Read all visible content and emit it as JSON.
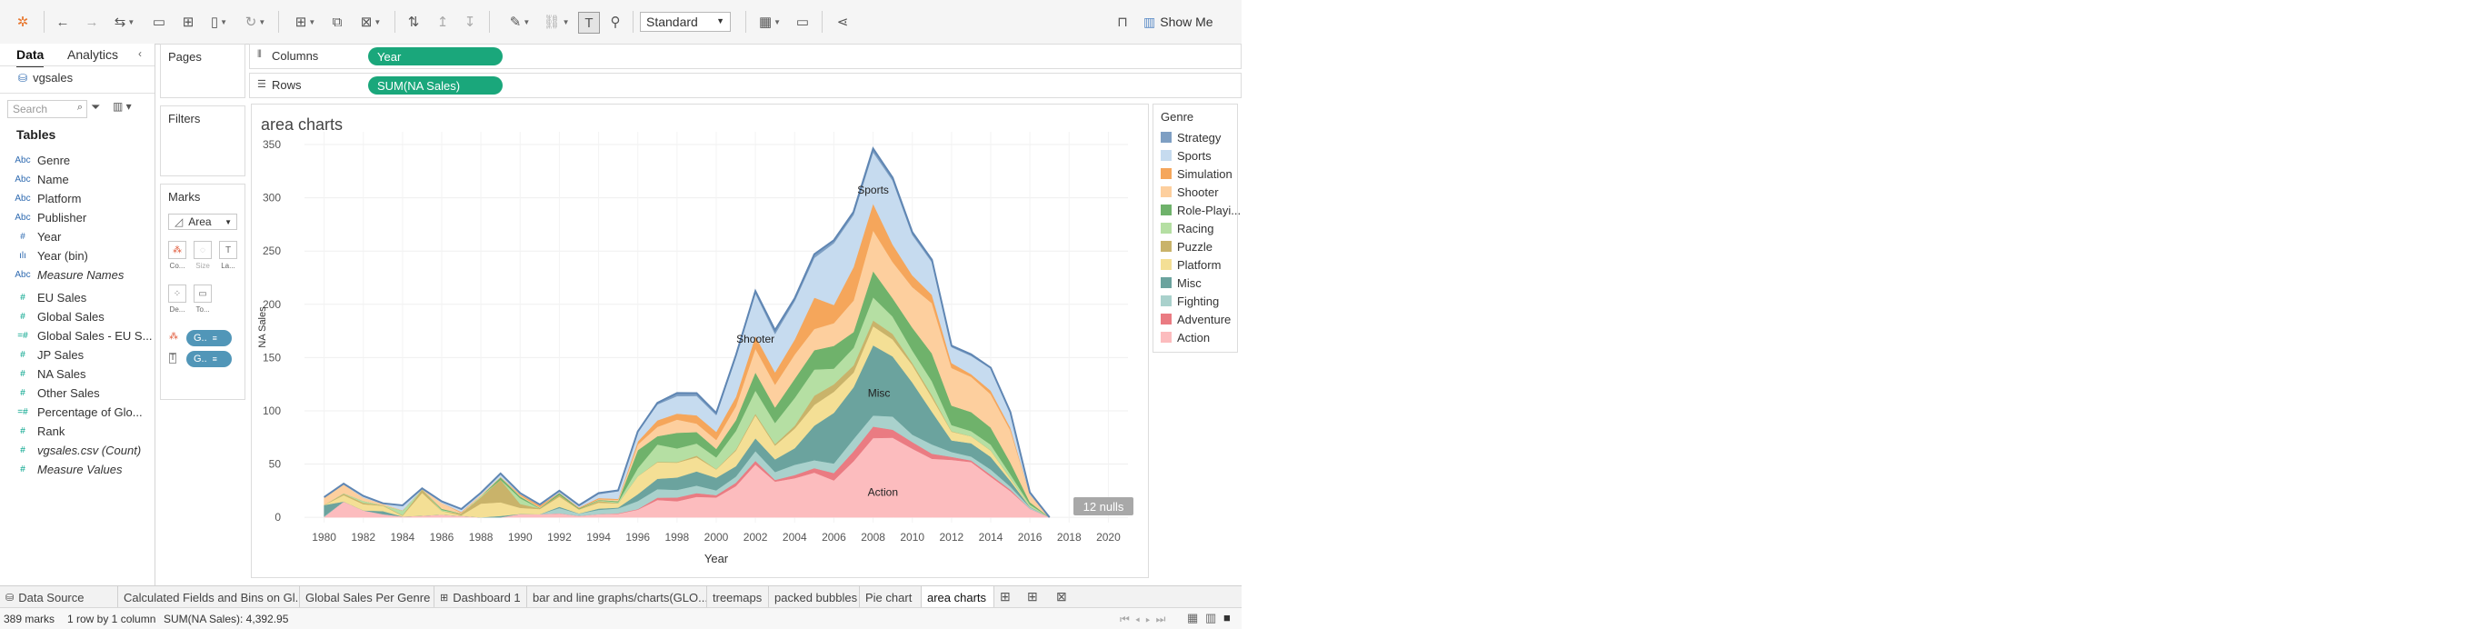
{
  "toolbar": {
    "mark_size_select": "Standard",
    "show_me": "Show Me"
  },
  "left_panel": {
    "tabs": [
      "Data",
      "Analytics"
    ],
    "datasource": "vgsales",
    "search_placeholder": "Search",
    "tables_heading": "Tables",
    "fields": [
      {
        "type": "Abc",
        "name": "Genre",
        "kind": "dim"
      },
      {
        "type": "Abc",
        "name": "Name",
        "kind": "dim"
      },
      {
        "type": "Abc",
        "name": "Platform",
        "kind": "dim"
      },
      {
        "type": "Abc",
        "name": "Publisher",
        "kind": "dim"
      },
      {
        "type": "#",
        "name": "Year",
        "kind": "dim"
      },
      {
        "type": "ılı",
        "name": "Year (bin)",
        "kind": "dim"
      },
      {
        "type": "Abc",
        "name": "Measure Names",
        "kind": "dim",
        "italic": true
      },
      {
        "type": "#",
        "name": "EU Sales",
        "kind": "mea"
      },
      {
        "type": "#",
        "name": "Global Sales",
        "kind": "mea"
      },
      {
        "type": "=#",
        "name": "Global Sales - EU S...",
        "kind": "mea"
      },
      {
        "type": "#",
        "name": "JP Sales",
        "kind": "mea"
      },
      {
        "type": "#",
        "name": "NA Sales",
        "kind": "mea"
      },
      {
        "type": "#",
        "name": "Other Sales",
        "kind": "mea"
      },
      {
        "type": "=#",
        "name": "Percentage of Glo...",
        "kind": "mea"
      },
      {
        "type": "#",
        "name": "Rank",
        "kind": "mea"
      },
      {
        "type": "#",
        "name": "vgsales.csv (Count)",
        "kind": "mea",
        "italic": true
      },
      {
        "type": "#",
        "name": "Measure Values",
        "kind": "mea",
        "italic": true
      }
    ]
  },
  "pages_card": {
    "title": "Pages"
  },
  "filters_card": {
    "title": "Filters"
  },
  "marks_card": {
    "title": "Marks",
    "mark_type": "Area",
    "buttons": [
      "Co...",
      "Size",
      "La...",
      "De...",
      "To..."
    ],
    "pills": [
      "G..",
      "G.."
    ]
  },
  "shelves": {
    "columns_label": "Columns",
    "columns_pill": "Year",
    "rows_label": "Rows",
    "rows_pill": "SUM(NA Sales)"
  },
  "legend": {
    "title": "Genre",
    "items": [
      {
        "name": "Strategy",
        "color": "#7e9fc3"
      },
      {
        "name": "Sports",
        "color": "#c6dbef"
      },
      {
        "name": "Simulation",
        "color": "#f5a65b"
      },
      {
        "name": "Shooter",
        "color": "#fdcf9e"
      },
      {
        "name": "Role-Playi...",
        "color": "#6fb26b"
      },
      {
        "name": "Racing",
        "color": "#b5dfa3"
      },
      {
        "name": "Puzzle",
        "color": "#c9b36a"
      },
      {
        "name": "Platform",
        "color": "#f4df95"
      },
      {
        "name": "Misc",
        "color": "#6ba39e"
      },
      {
        "name": "Fighting",
        "color": "#a9d1cc"
      },
      {
        "name": "Adventure",
        "color": "#ea7b82"
      },
      {
        "name": "Action",
        "color": "#fcbcbe"
      }
    ]
  },
  "chart_data": {
    "type": "area",
    "title": "area charts",
    "xlabel": "Year",
    "ylabel": "NA Sales",
    "x_ticks": [
      1980,
      1982,
      1984,
      1986,
      1988,
      1990,
      1992,
      1994,
      1996,
      1998,
      2000,
      2002,
      2004,
      2006,
      2008,
      2010,
      2012,
      2014,
      2016,
      2018,
      2020
    ],
    "y_ticks": [
      0,
      50,
      100,
      150,
      200,
      250,
      300,
      350
    ],
    "xlim": [
      1979,
      2021
    ],
    "ylim": [
      -5,
      362
    ],
    "years": [
      1980,
      1981,
      1982,
      1983,
      1984,
      1985,
      1986,
      1987,
      1988,
      1989,
      1990,
      1991,
      1992,
      1993,
      1994,
      1995,
      1996,
      1997,
      1998,
      1999,
      2000,
      2001,
      2002,
      2003,
      2004,
      2005,
      2006,
      2007,
      2008,
      2009,
      2010,
      2011,
      2012,
      2013,
      2014,
      2015,
      2016,
      2017
    ],
    "series": [
      {
        "name": "Action",
        "values": [
          0.3,
          14.8,
          6.5,
          2.9,
          0.8,
          1.6,
          2.6,
          1.4,
          0.0,
          0.0,
          3.2,
          2.9,
          3.6,
          1.4,
          3.0,
          3.4,
          7.2,
          16.3,
          15.1,
          19.2,
          18.6,
          29.3,
          49.6,
          33.6,
          36.7,
          42.0,
          34.7,
          52.6,
          74.5,
          74.8,
          64.5,
          55.0,
          54.0,
          51.9,
          38.1,
          24.6,
          8.0,
          0.0
        ]
      },
      {
        "name": "Adventure",
        "values": [
          0,
          0,
          0,
          0.1,
          0,
          0,
          0,
          0,
          0,
          0,
          0,
          0,
          0.2,
          0,
          0,
          0.4,
          0.5,
          2.2,
          3.5,
          3.5,
          2.3,
          3.2,
          3.4,
          1.5,
          3.0,
          4.2,
          6.9,
          9.3,
          10.7,
          7.5,
          6.2,
          4.8,
          2.8,
          1.6,
          1.8,
          1.4,
          0.1,
          0
        ]
      },
      {
        "name": "Fighting",
        "values": [
          0.7,
          0,
          0,
          0,
          0,
          0,
          0,
          0,
          0,
          0,
          0,
          0,
          4.9,
          2.1,
          4.0,
          4.6,
          7.6,
          8.0,
          7.2,
          7.1,
          4.5,
          5.8,
          9.2,
          7.4,
          9.7,
          7.4,
          9.0,
          11.5,
          10.4,
          12.4,
          7.0,
          8.7,
          4.6,
          3.6,
          5.0,
          2.9,
          1.4,
          0
        ]
      },
      {
        "name": "Misc",
        "values": [
          10.6,
          0,
          0,
          2.8,
          0,
          0,
          0,
          0,
          0,
          1.3,
          0,
          0,
          1.2,
          0.1,
          1.2,
          0.8,
          6.4,
          9.7,
          11.6,
          13.3,
          11.8,
          9.7,
          12.0,
          11.9,
          15.5,
          32.5,
          47.5,
          48.7,
          65.9,
          56.4,
          49.0,
          30.6,
          10.8,
          12.5,
          11.9,
          5.3,
          0.4,
          0
        ]
      },
      {
        "name": "Platform",
        "values": [
          0,
          6.1,
          5.8,
          5.1,
          0.7,
          21.4,
          3.3,
          0.6,
          12.9,
          12.8,
          5.7,
          4.9,
          9.5,
          3.8,
          5.6,
          3.9,
          16.8,
          15.5,
          13.9,
          13.3,
          7.7,
          14.6,
          21.7,
          13.0,
          18.4,
          19.5,
          19.8,
          13.7,
          17.9,
          16.0,
          16.3,
          13.3,
          8.2,
          6.5,
          5.9,
          2.4,
          0.5,
          0
        ]
      },
      {
        "name": "Puzzle",
        "values": [
          0,
          1.2,
          1.4,
          0.4,
          0.6,
          3.1,
          0,
          1.6,
          5.9,
          21.3,
          3.7,
          0.6,
          1.9,
          0.3,
          1.6,
          0.3,
          0.1,
          0.5,
          0.5,
          1.5,
          0.4,
          1.0,
          1.4,
          1.3,
          2.7,
          8.6,
          7.0,
          6.8,
          5.5,
          5.2,
          2.0,
          2.3,
          0.5,
          0.1,
          0.2,
          0.2,
          0,
          0
        ]
      },
      {
        "name": "Racing",
        "values": [
          0,
          0.5,
          1.6,
          0,
          4.2,
          0,
          1.1,
          0,
          1.2,
          0,
          5.4,
          0,
          0,
          0,
          0.6,
          1.0,
          7.5,
          16.2,
          12.9,
          11.4,
          11.0,
          17.5,
          21.8,
          19.9,
          26.1,
          24.6,
          14.8,
          16.4,
          21.7,
          16.2,
          11.7,
          13.1,
          5.8,
          4.8,
          5.4,
          3.6,
          1.6,
          0
        ]
      },
      {
        "name": "Role-Playing",
        "values": [
          0,
          0,
          0,
          0,
          0,
          0,
          1.1,
          0,
          0,
          2.2,
          1.7,
          0.4,
          1.6,
          0.8,
          0.4,
          0.8,
          16.9,
          7.8,
          14.7,
          10.8,
          7.9,
          10.2,
          17.0,
          14.5,
          17.9,
          18.2,
          21.3,
          14.9,
          24.6,
          17.2,
          21.5,
          26.0,
          18.2,
          17.9,
          16.0,
          11.1,
          2.2,
          0
        ]
      },
      {
        "name": "Shooter",
        "values": [
          6.9,
          8.2,
          3.1,
          1.4,
          0.3,
          0.3,
          5.3,
          0.6,
          1.3,
          0.5,
          0.9,
          0.7,
          0.1,
          0.0,
          0.5,
          1.3,
          5.4,
          8.8,
          12.4,
          7.9,
          8.5,
          12.9,
          22.3,
          21.5,
          22.9,
          19.9,
          21.3,
          29.6,
          38.2,
          34.0,
          38.0,
          47.2,
          35.4,
          33.1,
          31.3,
          30.2,
          7.1,
          0
        ]
      },
      {
        "name": "Simulation",
        "values": [
          0,
          0,
          0,
          0,
          0,
          0,
          0,
          0.9,
          0,
          0,
          1.1,
          1.7,
          0.2,
          0.8,
          1.2,
          0.9,
          2.8,
          6.1,
          5.6,
          7.8,
          7.6,
          8.8,
          11.8,
          11.6,
          14.1,
          29.4,
          17.1,
          31.4,
          25.2,
          16.5,
          11.0,
          7.9,
          4.6,
          2.5,
          3.3,
          2.5,
          0.2,
          0
        ]
      },
      {
        "name": "Sports",
        "values": [
          0.5,
          0.8,
          1.7,
          0.5,
          4.6,
          0.8,
          1.6,
          2.7,
          1.8,
          3.1,
          1.0,
          0.8,
          1.5,
          1.2,
          3.7,
          7.1,
          9.0,
          14.9,
          16.4,
          18.2,
          15.7,
          37.2,
          40.1,
          35.9,
          36.0,
          37.3,
          58.0,
          49.0,
          48.2,
          59.9,
          38.0,
          30.6,
          14.9,
          17.1,
          20.9,
          14.4,
          1.6,
          0
        ]
      },
      {
        "name": "Strategy",
        "values": [
          0,
          0,
          0,
          0,
          0,
          0,
          0,
          0,
          0,
          0,
          0,
          0,
          0.3,
          0.8,
          1.0,
          0.8,
          0.4,
          1.5,
          2.9,
          2.6,
          2.0,
          1.8,
          2.2,
          3.7,
          2.7,
          3.4,
          2.8,
          2.8,
          3.5,
          2.8,
          2.7,
          2.3,
          1.4,
          1.5,
          0.7,
          0.3,
          0.2,
          0
        ]
      }
    ],
    "annotations": [
      {
        "text": "Sports",
        "x": 2008,
        "y": 304
      },
      {
        "text": "Shooter",
        "x": 2002,
        "y": 164
      },
      {
        "text": "Misc",
        "x": 2008.3,
        "y": 113
      },
      {
        "text": "Action",
        "x": 2008.5,
        "y": 20
      }
    ],
    "nulls_label": "12 nulls"
  },
  "sheet_tabs": {
    "items": [
      "Data Source",
      "Calculated Fields and Bins on Gl...",
      "Global Sales Per Genre",
      "Dashboard 1",
      "bar and line graphs/charts(GLO...",
      "treemaps",
      "packed bubbles",
      "Pie chart",
      "area charts"
    ],
    "active": "area charts"
  },
  "status": {
    "marks": "389 marks",
    "dims": "1 row by 1 column",
    "sum": "SUM(NA Sales): 4,392.95"
  }
}
